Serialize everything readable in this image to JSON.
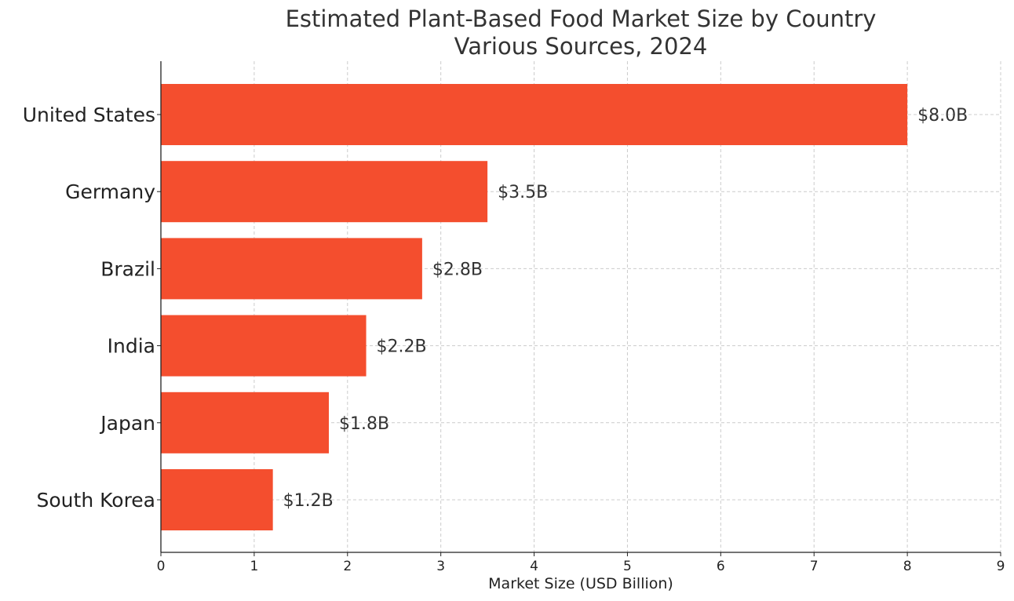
{
  "chart_data": {
    "type": "bar",
    "orientation": "horizontal",
    "title": "Estimated Plant-Based Food Market Size by Country",
    "subtitle": "Various Sources, 2024",
    "xlabel": "Market Size (USD Billion)",
    "ylabel": "",
    "categories": [
      "United States",
      "Germany",
      "Brazil",
      "India",
      "Japan",
      "South Korea"
    ],
    "values": [
      8.0,
      3.5,
      2.8,
      2.2,
      1.8,
      1.2
    ],
    "data_labels": [
      "$8.0B",
      "$3.5B",
      "$2.8B",
      "$2.2B",
      "$1.8B",
      "$1.2B"
    ],
    "xlim": [
      0,
      9
    ],
    "x_ticks": [
      "0",
      "1",
      "2",
      "3",
      "4",
      "5",
      "6",
      "7",
      "8",
      "9"
    ],
    "grid": true,
    "legend": "none",
    "bar_color": "#f44e2e",
    "grid_color": "#cccccc",
    "axis_color": "#222222"
  }
}
